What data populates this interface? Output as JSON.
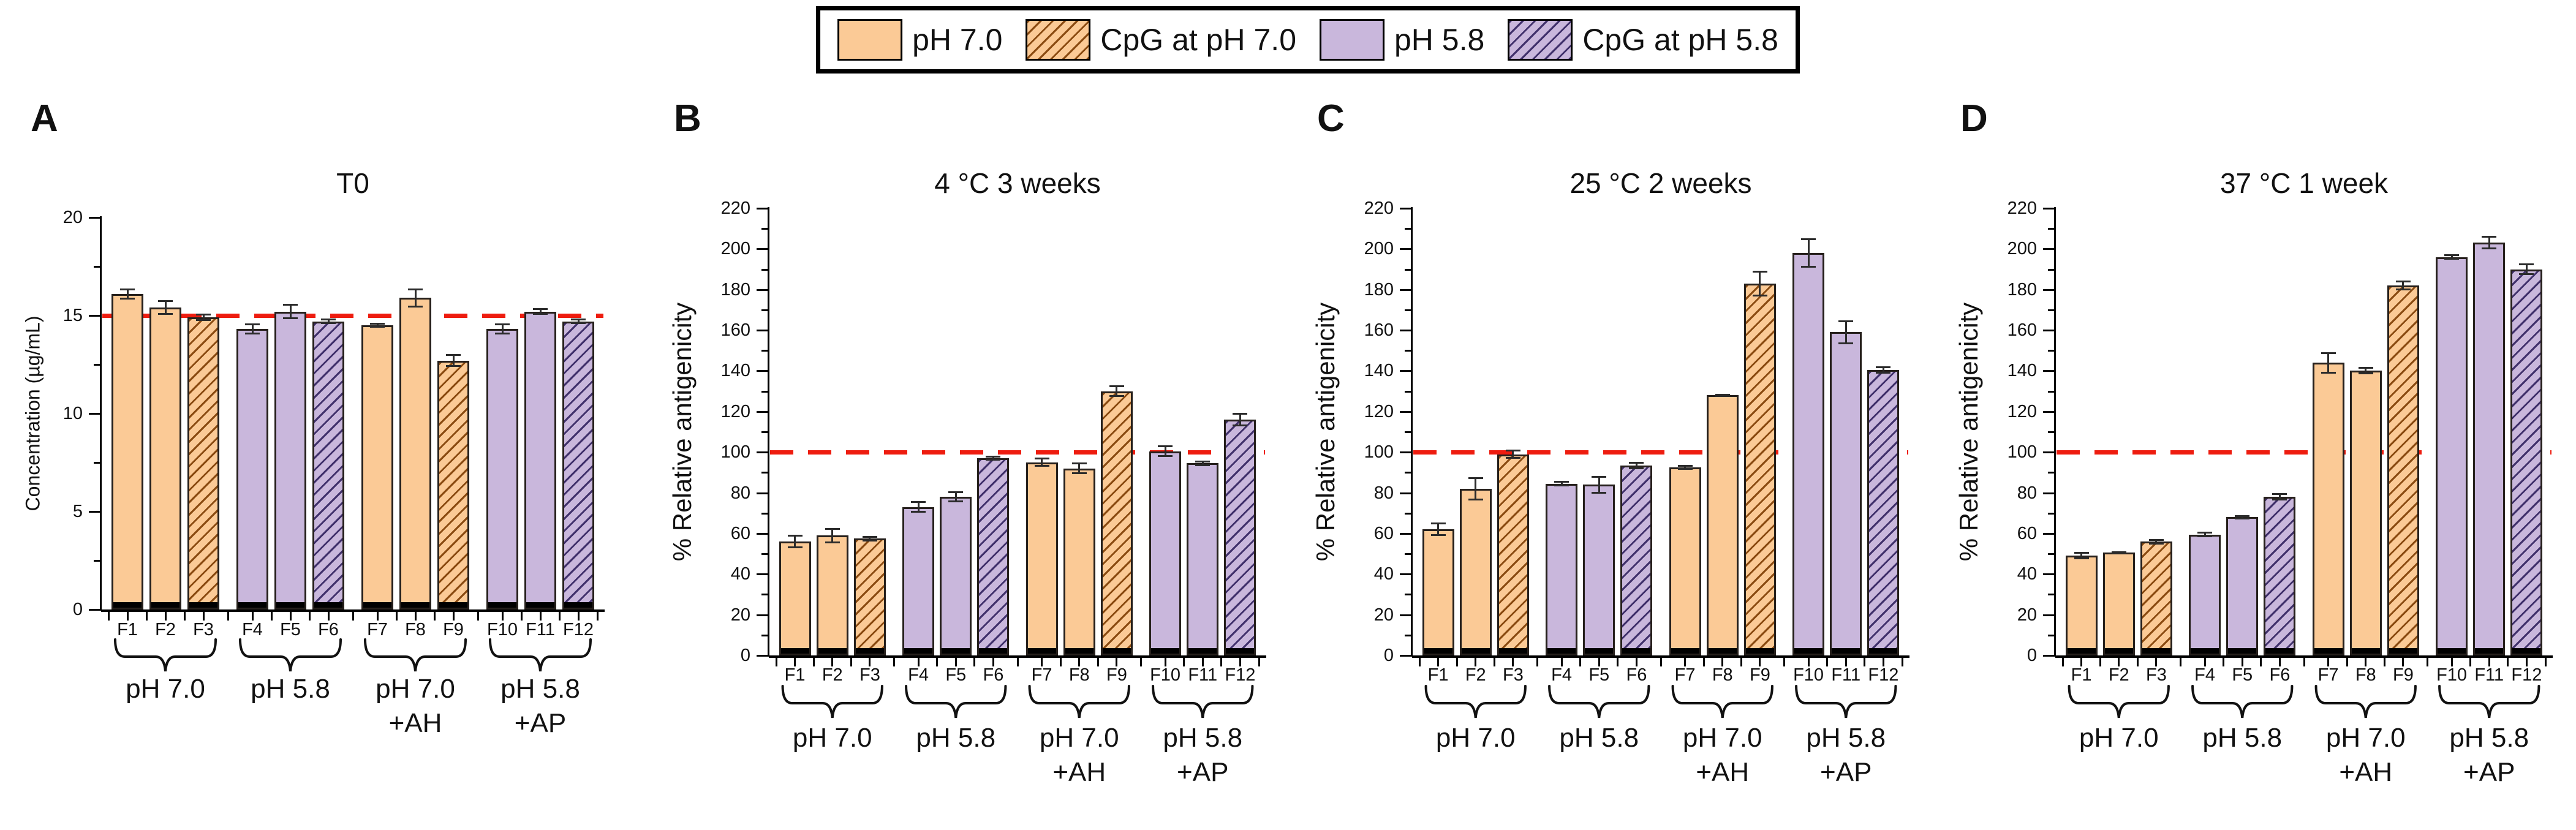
{
  "figure": {
    "legend_items": [
      {
        "label": "pH 7.0",
        "style": "orange"
      },
      {
        "label": "CpG at pH 7.0",
        "style": "orange-hatch"
      },
      {
        "label": "pH 5.8",
        "style": "purple"
      },
      {
        "label": "CpG at pH 5.8",
        "style": "purple-hatch"
      }
    ],
    "colors": {
      "orange_fill": "#FBCA96",
      "orange_hatch_line": "#8A4A10",
      "purple_fill": "#C9B7DC",
      "purple_hatch_line": "#40306B",
      "reference_line_red": "#EE1C0F",
      "bar_border": "#26201c"
    }
  },
  "chart_data": [
    {
      "type": "bar",
      "panel_letter": "A",
      "title": "T0",
      "ylabel": "Concentration (µg/mL)",
      "ylim": [
        0,
        20
      ],
      "ytick_major": 5,
      "ytick_minor": 2.5,
      "reference_line_y": 15,
      "grid": false,
      "categories": [
        "F1",
        "F2",
        "F3",
        "F4",
        "F5",
        "F6",
        "F7",
        "F8",
        "F9",
        "F10",
        "F11",
        "F12"
      ],
      "bar_styles": [
        "orange",
        "orange",
        "orange-hatch",
        "purple",
        "purple",
        "purple-hatch",
        "orange",
        "orange",
        "orange-hatch",
        "purple",
        "purple",
        "purple-hatch"
      ],
      "values": [
        16.1,
        15.4,
        14.9,
        14.3,
        15.2,
        14.7,
        14.5,
        15.9,
        12.7,
        14.3,
        15.2,
        14.7
      ],
      "errors": [
        0.25,
        0.35,
        0.15,
        0.25,
        0.35,
        0.1,
        0.1,
        0.45,
        0.3,
        0.25,
        0.15,
        0.1
      ],
      "groups": [
        {
          "label_lines": [
            "pH 7.0"
          ],
          "categories": [
            "F1",
            "F2",
            "F3"
          ]
        },
        {
          "label_lines": [
            "pH 5.8"
          ],
          "categories": [
            "F4",
            "F5",
            "F6"
          ]
        },
        {
          "label_lines": [
            "pH 7.0",
            "+AH"
          ],
          "categories": [
            "F7",
            "F8",
            "F9"
          ]
        },
        {
          "label_lines": [
            "pH 5.8",
            "+AP"
          ],
          "categories": [
            "F10",
            "F11",
            "F12"
          ]
        }
      ]
    },
    {
      "type": "bar",
      "panel_letter": "B",
      "title": "4 °C 3 weeks",
      "ylabel": "% Relative antigenicity",
      "ylim": [
        0,
        220
      ],
      "ytick_major": 20,
      "ytick_minor": 10,
      "reference_line_y": 100,
      "grid": false,
      "categories": [
        "F1",
        "F2",
        "F3",
        "F4",
        "F5",
        "F6",
        "F7",
        "F8",
        "F9",
        "F10",
        "F11",
        "F12"
      ],
      "bar_styles": [
        "orange",
        "orange",
        "orange-hatch",
        "purple",
        "purple",
        "purple-hatch",
        "orange",
        "orange",
        "orange-hatch",
        "purple",
        "purple",
        "purple-hatch"
      ],
      "values": [
        56,
        59,
        57.5,
        73,
        78,
        97,
        95,
        92,
        130,
        100.5,
        94.5,
        116
      ],
      "errors": [
        3,
        3.5,
        1,
        2.5,
        2.5,
        1,
        2,
        2.5,
        2.5,
        2.5,
        1,
        3
      ],
      "groups": [
        {
          "label_lines": [
            "pH 7.0"
          ],
          "categories": [
            "F1",
            "F2",
            "F3"
          ]
        },
        {
          "label_lines": [
            "pH 5.8"
          ],
          "categories": [
            "F4",
            "F5",
            "F6"
          ]
        },
        {
          "label_lines": [
            "pH 7.0",
            "+AH"
          ],
          "categories": [
            "F7",
            "F8",
            "F9"
          ]
        },
        {
          "label_lines": [
            "pH 5.8",
            "+AP"
          ],
          "categories": [
            "F10",
            "F11",
            "F12"
          ]
        }
      ]
    },
    {
      "type": "bar",
      "panel_letter": "C",
      "title": "25 °C 2 weeks",
      "ylabel": "% Relative antigenicity",
      "ylim": [
        0,
        220
      ],
      "ytick_major": 20,
      "ytick_minor": 10,
      "reference_line_y": 100,
      "grid": false,
      "categories": [
        "F1",
        "F2",
        "F3",
        "F4",
        "F5",
        "F6",
        "F7",
        "F8",
        "F9",
        "F10",
        "F11",
        "F12"
      ],
      "bar_styles": [
        "orange",
        "orange",
        "orange-hatch",
        "purple",
        "purple",
        "purple-hatch",
        "orange",
        "orange",
        "orange-hatch",
        "purple",
        "purple",
        "purple-hatch"
      ],
      "values": [
        62,
        82,
        99,
        84.5,
        84,
        93.5,
        92.5,
        128,
        183,
        198,
        159,
        140.5
      ],
      "errors": [
        3,
        5.5,
        2,
        1,
        4,
        1.5,
        1,
        0.5,
        6,
        7,
        5.5,
        1.5
      ],
      "groups": [
        {
          "label_lines": [
            "pH 7.0"
          ],
          "categories": [
            "F1",
            "F2",
            "F3"
          ]
        },
        {
          "label_lines": [
            "pH 5.8"
          ],
          "categories": [
            "F4",
            "F5",
            "F6"
          ]
        },
        {
          "label_lines": [
            "pH 7.0",
            "+AH"
          ],
          "categories": [
            "F7",
            "F8",
            "F9"
          ]
        },
        {
          "label_lines": [
            "pH 5.8",
            "+AP"
          ],
          "categories": [
            "F10",
            "F11",
            "F12"
          ]
        }
      ]
    },
    {
      "type": "bar",
      "panel_letter": "D",
      "title": "37 °C 1 week",
      "ylabel": "% Relative antigenicity",
      "ylim": [
        0,
        220
      ],
      "ytick_major": 20,
      "ytick_minor": 10,
      "reference_line_y": 100,
      "grid": false,
      "categories": [
        "F1",
        "F2",
        "F3",
        "F4",
        "F5",
        "F6",
        "F7",
        "F8",
        "F9",
        "F10",
        "F11",
        "F12"
      ],
      "bar_styles": [
        "orange",
        "orange",
        "orange-hatch",
        "purple",
        "purple",
        "purple-hatch",
        "orange",
        "orange",
        "orange-hatch",
        "purple",
        "purple",
        "purple-hatch"
      ],
      "values": [
        49,
        50.5,
        56,
        59.5,
        68,
        78,
        144,
        140,
        182,
        196,
        203,
        190
      ],
      "errors": [
        1.5,
        0.5,
        1,
        1,
        0.7,
        1.5,
        5,
        1.5,
        2,
        1,
        3,
        2.5
      ],
      "groups": [
        {
          "label_lines": [
            "pH 7.0"
          ],
          "categories": [
            "F1",
            "F2",
            "F3"
          ]
        },
        {
          "label_lines": [
            "pH 5.8"
          ],
          "categories": [
            "F4",
            "F5",
            "F6"
          ]
        },
        {
          "label_lines": [
            "pH 7.0",
            "+AH"
          ],
          "categories": [
            "F7",
            "F8",
            "F9"
          ]
        },
        {
          "label_lines": [
            "pH 5.8",
            "+AP"
          ],
          "categories": [
            "F10",
            "F11",
            "F12"
          ]
        }
      ]
    }
  ]
}
